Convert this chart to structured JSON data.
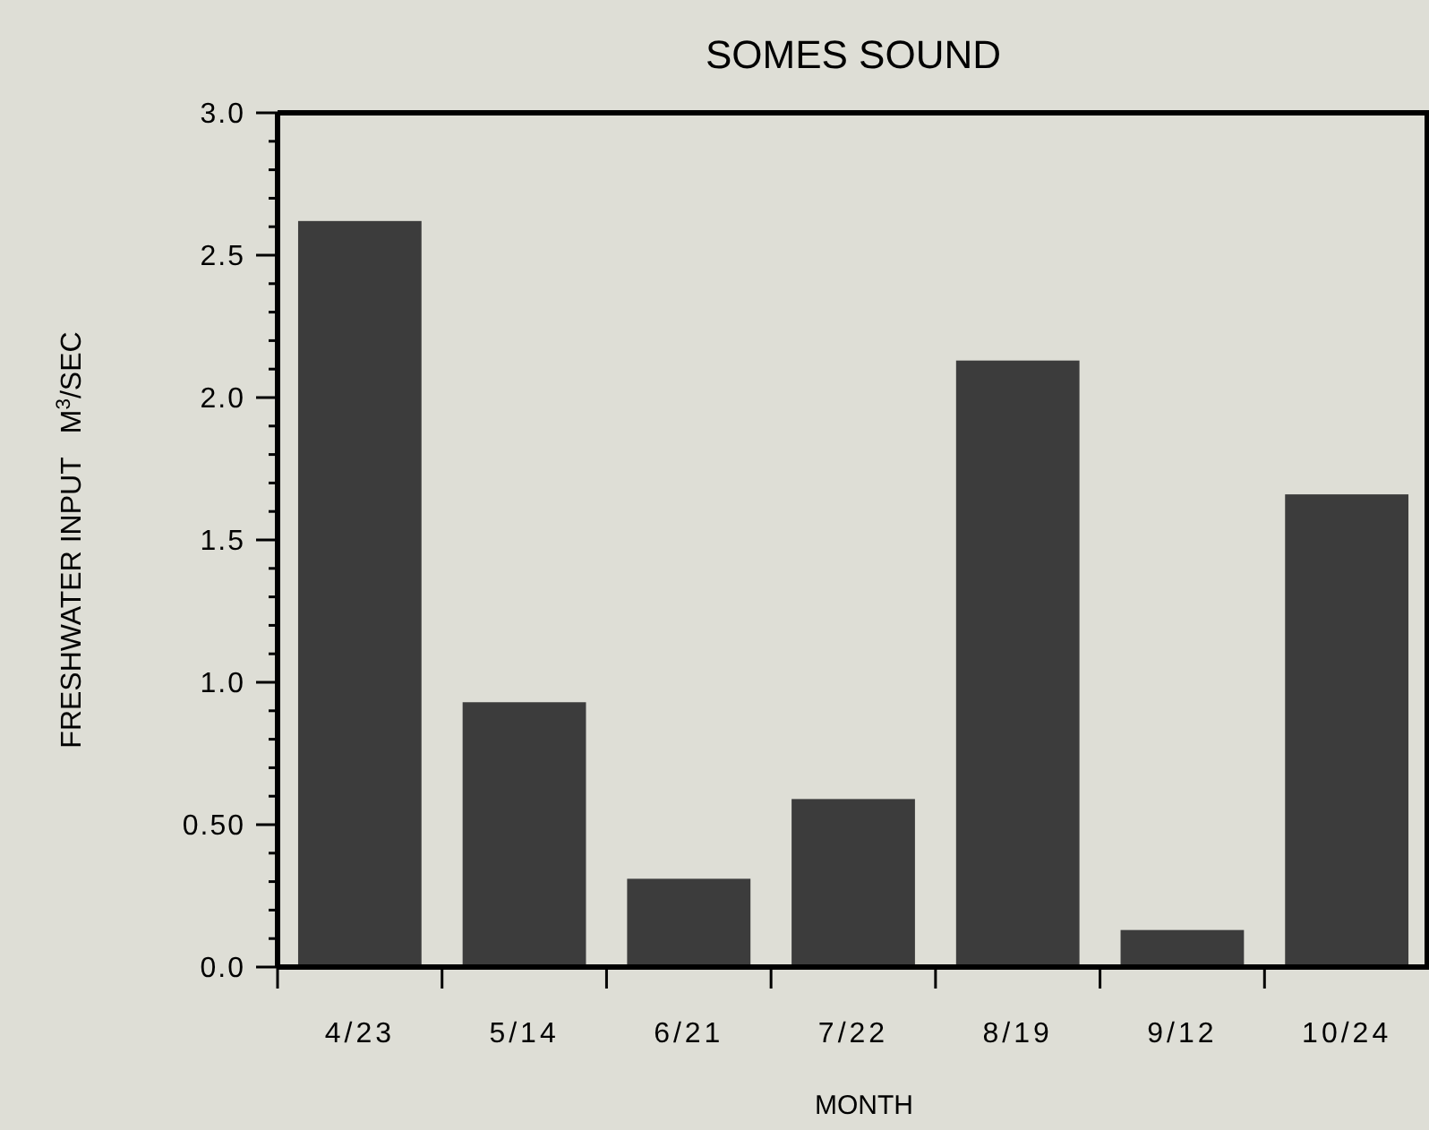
{
  "chart_data": {
    "type": "bar",
    "title": "SOMES SOUND",
    "xlabel": "MONTH",
    "ylabel": "FRESHWATER INPUT   M$^{3}$/SEC",
    "categories": [
      "4/23",
      "5/14",
      "6/21",
      "7/22",
      "8/19",
      "9/12",
      "10/24"
    ],
    "values": [
      2.62,
      0.93,
      0.31,
      0.59,
      2.13,
      0.13,
      1.66
    ],
    "color": "#3c3c3c",
    "ylim": [
      0,
      3
    ],
    "yticks": [
      {
        "value": 0,
        "label": "0.0"
      },
      {
        "value": 0.1,
        "label": null
      },
      {
        "value": 0.2,
        "label": null
      },
      {
        "value": 0.3,
        "label": null
      },
      {
        "value": 0.4,
        "label": null
      },
      {
        "value": 0.5,
        "label": "0.50"
      },
      {
        "value": 0.6,
        "label": null
      },
      {
        "value": 0.7,
        "label": null
      },
      {
        "value": 0.8,
        "label": null
      },
      {
        "value": 0.9,
        "label": null
      },
      {
        "value": 1,
        "label": "1.0"
      },
      {
        "value": 1.1,
        "label": null
      },
      {
        "value": 1.2,
        "label": null
      },
      {
        "value": 1.3,
        "label": null
      },
      {
        "value": 1.4,
        "label": null
      },
      {
        "value": 1.5,
        "label": "1.5"
      },
      {
        "value": 1.6,
        "label": null
      },
      {
        "value": 1.7,
        "label": null
      },
      {
        "value": 1.8,
        "label": null
      },
      {
        "value": 1.9,
        "label": null
      },
      {
        "value": 2,
        "label": "2.0"
      },
      {
        "value": 2.1,
        "label": null
      },
      {
        "value": 2.2,
        "label": null
      },
      {
        "value": 2.3,
        "label": null
      },
      {
        "value": 2.4,
        "label": null
      },
      {
        "value": 2.5,
        "label": "2.5"
      },
      {
        "value": 2.6,
        "label": null
      },
      {
        "value": 2.7,
        "label": null
      },
      {
        "value": 2.8,
        "label": null
      },
      {
        "value": 2.9,
        "label": null
      },
      {
        "value": 3,
        "label": "3.0"
      }
    ],
    "grid": false
  }
}
